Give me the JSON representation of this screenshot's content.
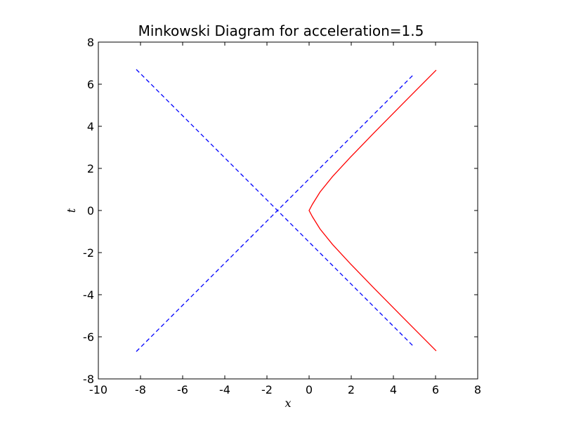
{
  "chart_data": {
    "type": "line",
    "title": "Minkowski Diagram for acceleration=1.5",
    "xlabel": "x",
    "ylabel": "t",
    "xlim": [
      -10,
      8
    ],
    "ylim": [
      -8,
      8
    ],
    "xticks": [
      -10,
      -8,
      -6,
      -4,
      -2,
      0,
      2,
      4,
      6,
      8
    ],
    "yticks": [
      -8,
      -6,
      -4,
      -2,
      0,
      2,
      4,
      6,
      8
    ],
    "xtick_labels": [
      "-10",
      "-8",
      "-6",
      "-4",
      "-2",
      "0",
      "2",
      "4",
      "6",
      "8"
    ],
    "ytick_labels": [
      "-8",
      "-6",
      "-4",
      "-2",
      "0",
      "2",
      "4",
      "6",
      "8"
    ],
    "grid": false,
    "legend": false,
    "series": [
      {
        "color": "#0000ff",
        "style": "dashed",
        "x": [
          -8.2,
          5.0
        ],
        "y": [
          -6.7,
          6.5
        ]
      },
      {
        "color": "#0000ff",
        "style": "dashed",
        "x": [
          -8.2,
          5.0
        ],
        "y": [
          6.7,
          -6.5
        ]
      },
      {
        "color": "#ff0000",
        "style": "solid",
        "x": [
          6.03,
          4.44,
          3.06,
          1.96,
          1.11,
          0.52,
          0.16,
          0.0,
          0.16,
          0.52,
          1.11,
          1.96,
          3.06,
          4.44,
          6.03
        ],
        "y": [
          -6.67,
          -5.07,
          -3.67,
          -2.53,
          -1.61,
          -0.88,
          -0.3,
          0.0,
          0.3,
          0.88,
          1.61,
          2.53,
          3.67,
          5.07,
          6.67
        ]
      }
    ]
  }
}
